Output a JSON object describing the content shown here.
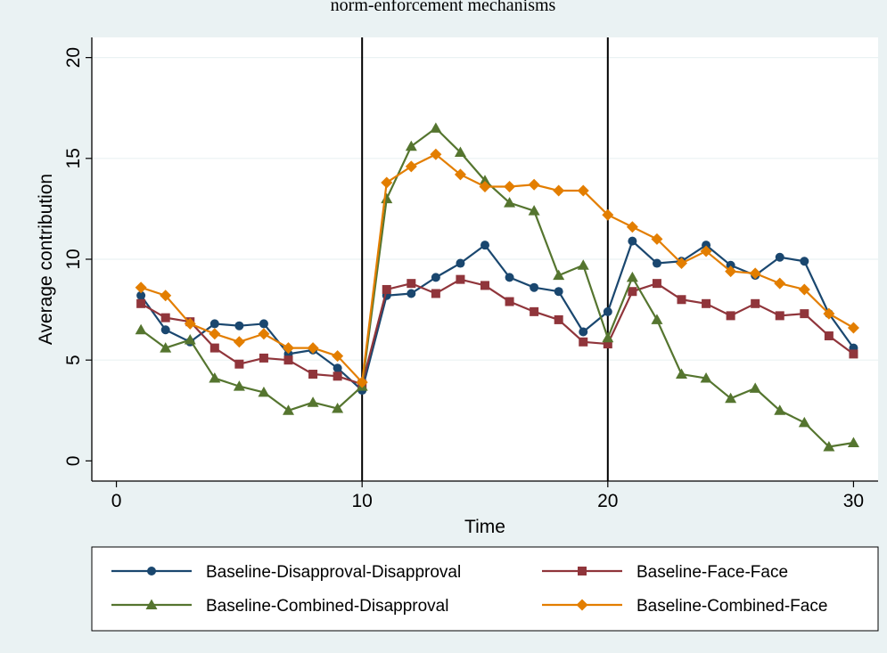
{
  "chart_data": {
    "type": "line",
    "title": "norm-enforcement mechanisms",
    "xlabel": "Time",
    "ylabel": "Average contribution",
    "xlim": [
      -1,
      31
    ],
    "ylim": [
      -1,
      21
    ],
    "x_ticks": [
      0,
      10,
      20,
      30
    ],
    "y_ticks": [
      0,
      5,
      10,
      15,
      20
    ],
    "y_gridlines": [
      5,
      10,
      15,
      20
    ],
    "vertical_lines": [
      10,
      20
    ],
    "grid": true,
    "legend_position": "bottom",
    "colors": {
      "background": "#eaf2f3",
      "plot_background": "#ffffff",
      "gridline": "#eaf2f3"
    },
    "x": [
      1,
      2,
      3,
      4,
      5,
      6,
      7,
      8,
      9,
      10,
      11,
      12,
      13,
      14,
      15,
      16,
      17,
      18,
      19,
      20,
      21,
      22,
      23,
      24,
      25,
      26,
      27,
      28,
      29,
      30
    ],
    "series": [
      {
        "name": "Baseline-Disapproval-Disapproval",
        "color": "#1a476f",
        "marker": "circle",
        "values": [
          8.2,
          6.5,
          5.9,
          6.8,
          6.7,
          6.8,
          5.3,
          5.5,
          4.6,
          3.5,
          8.2,
          8.3,
          9.1,
          9.8,
          10.7,
          9.1,
          8.6,
          8.4,
          6.4,
          7.4,
          10.9,
          9.8,
          9.9,
          10.7,
          9.7,
          9.2,
          10.1,
          9.9,
          7.3,
          5.6
        ]
      },
      {
        "name": "Baseline-Face-Face",
        "color": "#90353b",
        "marker": "square",
        "values": [
          7.8,
          7.1,
          6.9,
          5.6,
          4.8,
          5.1,
          5.0,
          4.3,
          4.2,
          3.8,
          8.5,
          8.8,
          8.3,
          9.0,
          8.7,
          7.9,
          7.4,
          7.0,
          5.9,
          5.8,
          8.4,
          8.8,
          8.0,
          7.8,
          7.2,
          7.8,
          7.2,
          7.3,
          6.2,
          5.3
        ]
      },
      {
        "name": "Baseline-Combined-Disapproval",
        "color": "#55752f",
        "marker": "triangle",
        "values": [
          6.5,
          5.6,
          6.0,
          4.1,
          3.7,
          3.4,
          2.5,
          2.9,
          2.6,
          3.7,
          13.0,
          15.6,
          16.5,
          15.3,
          13.9,
          12.8,
          12.4,
          9.2,
          9.7,
          6.1,
          9.1,
          7.0,
          4.3,
          4.1,
          3.1,
          3.6,
          2.5,
          1.9,
          0.7,
          0.9
        ]
      },
      {
        "name": "Baseline-Combined-Face",
        "color": "#e37e00",
        "marker": "diamond",
        "values": [
          8.6,
          8.2,
          6.8,
          6.3,
          5.9,
          6.3,
          5.6,
          5.6,
          5.2,
          3.9,
          13.8,
          14.6,
          15.2,
          14.2,
          13.6,
          13.6,
          13.7,
          13.4,
          13.4,
          12.2,
          11.6,
          11.0,
          9.8,
          10.4,
          9.4,
          9.3,
          8.8,
          8.5,
          7.3,
          6.6
        ]
      }
    ]
  }
}
